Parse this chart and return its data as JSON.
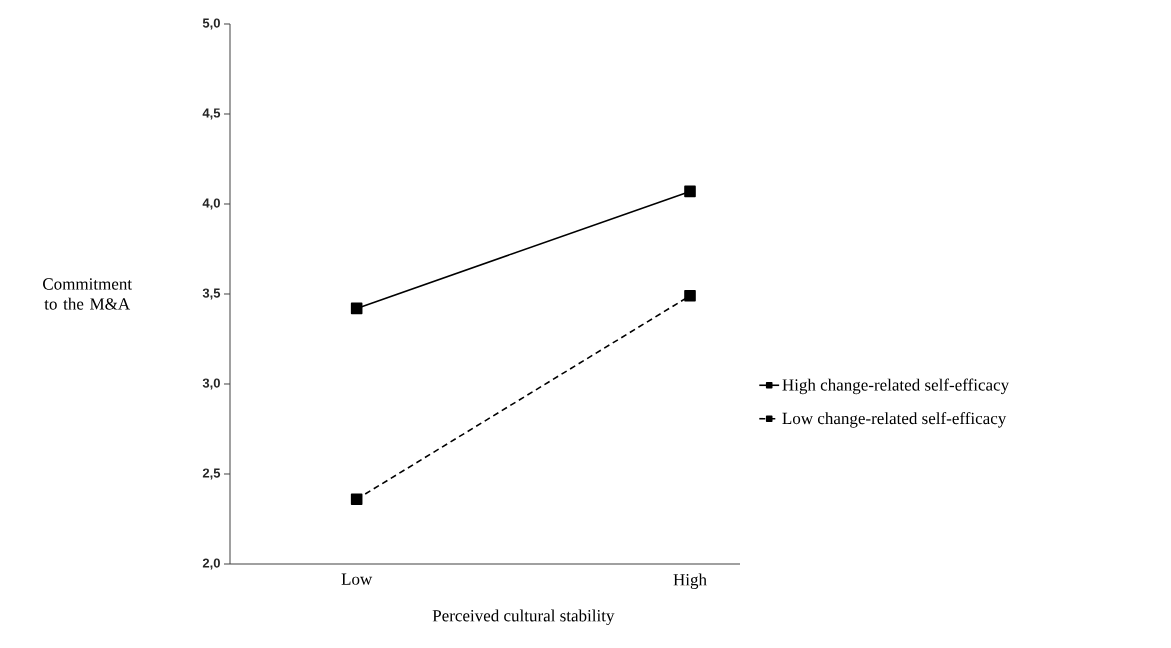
{
  "chart_data": {
    "type": "line",
    "xlabel": "Perceived cultural stability",
    "ylabel": "Commitment to the M&A",
    "categories": [
      "Low",
      "High"
    ],
    "series": [
      {
        "name": "High change-related self-efficacy",
        "color": "#000000",
        "values": [
          3.42,
          4.07
        ],
        "line_style": "solid"
      },
      {
        "name": "Low change-related self-efficacy",
        "color": "#000000",
        "values": [
          2.36,
          3.49
        ],
        "line_style": "dashed"
      }
    ],
    "ylim": [
      2.0,
      5.0
    ],
    "yticks": [
      {
        "value": 2.0,
        "label": "2,0"
      },
      {
        "value": 2.5,
        "label": "2,5"
      },
      {
        "value": 3.0,
        "label": "3,0"
      },
      {
        "value": 3.5,
        "label": "3,5"
      },
      {
        "value": 4.0,
        "label": "4,0"
      },
      {
        "value": 4.5,
        "label": "4,5"
      },
      {
        "value": 5.0,
        "label": "5,0"
      }
    ],
    "marker": "square",
    "legend": "right"
  }
}
